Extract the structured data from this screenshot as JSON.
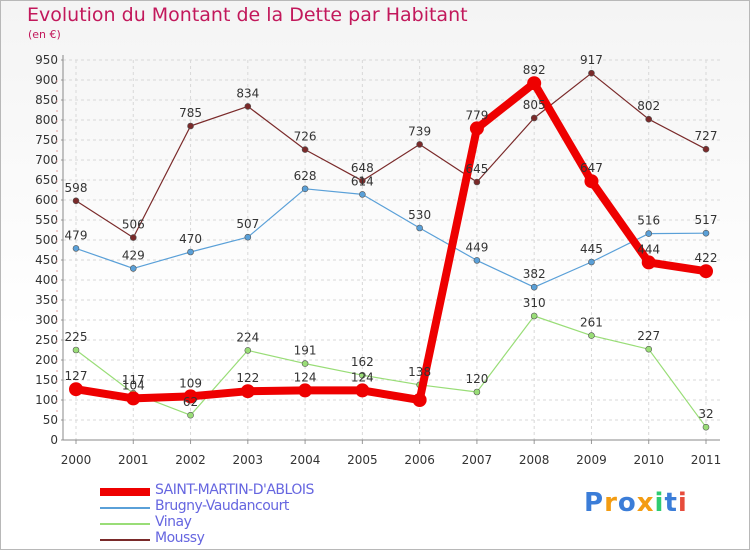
{
  "title": "Evolution du Montant de la Dette par Habitant",
  "unit_label": "(en €)",
  "logo": {
    "text": "Proxiti",
    "colors": [
      "#3b7dd8",
      "#f39c12",
      "#3b7dd8",
      "#f39c12",
      "#2ecc71",
      "#3b7dd8",
      "#e74c3c"
    ]
  },
  "chart_data": {
    "type": "line",
    "title": "Evolution du Montant de la Dette par Habitant",
    "ylabel": "(en €)",
    "x": [
      "2000",
      "2001",
      "2002",
      "2003",
      "2004",
      "2005",
      "2006",
      "2007",
      "2008",
      "2009",
      "2010",
      "2011"
    ],
    "ylim": [
      0,
      950
    ],
    "yticks": [
      0,
      50,
      100,
      150,
      200,
      250,
      300,
      350,
      400,
      450,
      500,
      550,
      600,
      650,
      700,
      750,
      800,
      850,
      900,
      950
    ],
    "grid": true,
    "legend_position": "bottom-left",
    "series": [
      {
        "name": "SAINT-MARTIN-D'ABLOIS",
        "color": "#ee0000",
        "values": [
          127,
          104,
          109,
          122,
          124,
          124,
          100,
          779,
          892,
          647,
          444,
          422
        ],
        "labels": [
          "127",
          "104",
          "109",
          "122",
          "124",
          "124",
          "",
          "779",
          "892",
          "647",
          "444",
          "422"
        ]
      },
      {
        "name": "Brugny-Vaudancourt",
        "color": "#5aa0d8",
        "values": [
          479,
          429,
          470,
          507,
          628,
          614,
          530,
          449,
          382,
          445,
          516,
          517
        ],
        "labels": [
          "479",
          "429",
          "470",
          "507",
          "628",
          "614",
          "530",
          "449",
          "382",
          "445",
          "516",
          "517"
        ]
      },
      {
        "name": "Vinay",
        "color": "#99dd77",
        "values": [
          225,
          117,
          62,
          224,
          191,
          162,
          138,
          120,
          310,
          261,
          227,
          32
        ],
        "labels": [
          "225",
          "117",
          "62",
          "224",
          "191",
          "162",
          "138",
          "120",
          "310",
          "261",
          "227",
          "32"
        ]
      },
      {
        "name": "Moussy",
        "color": "#7a2a2a",
        "values": [
          598,
          506,
          785,
          834,
          726,
          648,
          739,
          645,
          805,
          917,
          802,
          727
        ],
        "labels": [
          "598",
          "506",
          "785",
          "834",
          "726",
          "648",
          "739",
          "645",
          "805",
          "917",
          "802",
          "727"
        ]
      }
    ]
  }
}
